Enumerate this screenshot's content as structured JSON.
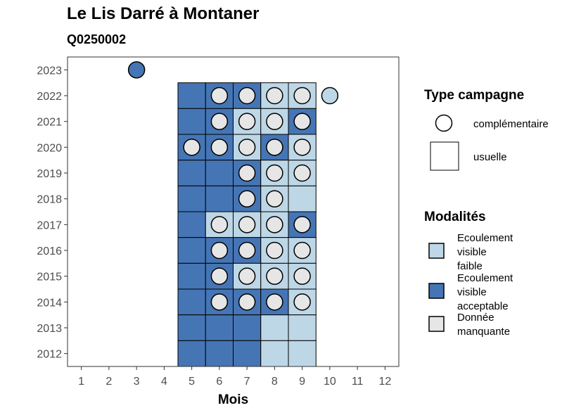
{
  "title": "Le Lis Darré à Montaner",
  "subtitle": "Q0250002",
  "colors": {
    "Ecoulement visible faible": "#bdd7e7",
    "Ecoulement visible acceptable": "#4575b4",
    "Donnée manquante": "#e6e6e6"
  },
  "legend": {
    "type_title": "Type campagne",
    "types": [
      "complémentaire",
      "usuelle"
    ],
    "modalites_title": "Modalités",
    "modalites": [
      {
        "key": "Ecoulement visible faible",
        "lines": [
          "Ecoulement",
          "visible",
          "faible"
        ]
      },
      {
        "key": "Ecoulement visible acceptable",
        "lines": [
          "Ecoulement",
          "visible",
          "acceptable"
        ]
      },
      {
        "key": "Donnée manquante",
        "lines": [
          "Donnée",
          "manquante"
        ]
      }
    ]
  },
  "chart_data": {
    "type": "heatmap",
    "xlabel": "Mois",
    "ylabel": "",
    "x_ticks": [
      1,
      2,
      3,
      4,
      5,
      6,
      7,
      8,
      9,
      10,
      11,
      12
    ],
    "y_ticks": [
      2012,
      2013,
      2014,
      2015,
      2016,
      2017,
      2018,
      2019,
      2020,
      2021,
      2022,
      2023
    ],
    "xlim": [
      0.5,
      12.5
    ],
    "ylim": [
      2011.5,
      2023.5
    ],
    "usuelle": [
      {
        "year": 2022,
        "month": 5,
        "modalite": "Ecoulement visible acceptable"
      },
      {
        "year": 2022,
        "month": 6,
        "modalite": "Ecoulement visible acceptable"
      },
      {
        "year": 2022,
        "month": 7,
        "modalite": "Ecoulement visible acceptable"
      },
      {
        "year": 2022,
        "month": 8,
        "modalite": "Ecoulement visible faible"
      },
      {
        "year": 2022,
        "month": 9,
        "modalite": "Ecoulement visible faible"
      },
      {
        "year": 2021,
        "month": 5,
        "modalite": "Ecoulement visible acceptable"
      },
      {
        "year": 2021,
        "month": 6,
        "modalite": "Ecoulement visible acceptable"
      },
      {
        "year": 2021,
        "month": 7,
        "modalite": "Ecoulement visible faible"
      },
      {
        "year": 2021,
        "month": 8,
        "modalite": "Ecoulement visible faible"
      },
      {
        "year": 2021,
        "month": 9,
        "modalite": "Ecoulement visible acceptable"
      },
      {
        "year": 2020,
        "month": 5,
        "modalite": "Ecoulement visible acceptable"
      },
      {
        "year": 2020,
        "month": 6,
        "modalite": "Ecoulement visible acceptable"
      },
      {
        "year": 2020,
        "month": 7,
        "modalite": "Ecoulement visible faible"
      },
      {
        "year": 2020,
        "month": 8,
        "modalite": "Ecoulement visible acceptable"
      },
      {
        "year": 2020,
        "month": 9,
        "modalite": "Ecoulement visible faible"
      },
      {
        "year": 2019,
        "month": 5,
        "modalite": "Ecoulement visible acceptable"
      },
      {
        "year": 2019,
        "month": 6,
        "modalite": "Ecoulement visible acceptable"
      },
      {
        "year": 2019,
        "month": 7,
        "modalite": "Ecoulement visible acceptable"
      },
      {
        "year": 2019,
        "month": 8,
        "modalite": "Ecoulement visible faible"
      },
      {
        "year": 2019,
        "month": 9,
        "modalite": "Ecoulement visible faible"
      },
      {
        "year": 2018,
        "month": 5,
        "modalite": "Ecoulement visible acceptable"
      },
      {
        "year": 2018,
        "month": 6,
        "modalite": "Ecoulement visible acceptable"
      },
      {
        "year": 2018,
        "month": 7,
        "modalite": "Ecoulement visible acceptable"
      },
      {
        "year": 2018,
        "month": 8,
        "modalite": "Ecoulement visible faible"
      },
      {
        "year": 2018,
        "month": 9,
        "modalite": "Ecoulement visible faible"
      },
      {
        "year": 2017,
        "month": 5,
        "modalite": "Ecoulement visible acceptable"
      },
      {
        "year": 2017,
        "month": 6,
        "modalite": "Ecoulement visible faible"
      },
      {
        "year": 2017,
        "month": 7,
        "modalite": "Ecoulement visible faible"
      },
      {
        "year": 2017,
        "month": 8,
        "modalite": "Ecoulement visible faible"
      },
      {
        "year": 2017,
        "month": 9,
        "modalite": "Ecoulement visible acceptable"
      },
      {
        "year": 2016,
        "month": 5,
        "modalite": "Ecoulement visible acceptable"
      },
      {
        "year": 2016,
        "month": 6,
        "modalite": "Ecoulement visible acceptable"
      },
      {
        "year": 2016,
        "month": 7,
        "modalite": "Ecoulement visible acceptable"
      },
      {
        "year": 2016,
        "month": 8,
        "modalite": "Ecoulement visible faible"
      },
      {
        "year": 2016,
        "month": 9,
        "modalite": "Ecoulement visible faible"
      },
      {
        "year": 2015,
        "month": 5,
        "modalite": "Ecoulement visible acceptable"
      },
      {
        "year": 2015,
        "month": 6,
        "modalite": "Ecoulement visible acceptable"
      },
      {
        "year": 2015,
        "month": 7,
        "modalite": "Ecoulement visible faible"
      },
      {
        "year": 2015,
        "month": 8,
        "modalite": "Ecoulement visible faible"
      },
      {
        "year": 2015,
        "month": 9,
        "modalite": "Ecoulement visible faible"
      },
      {
        "year": 2014,
        "month": 5,
        "modalite": "Ecoulement visible acceptable"
      },
      {
        "year": 2014,
        "month": 6,
        "modalite": "Ecoulement visible acceptable"
      },
      {
        "year": 2014,
        "month": 7,
        "modalite": "Ecoulement visible acceptable"
      },
      {
        "year": 2014,
        "month": 8,
        "modalite": "Ecoulement visible acceptable"
      },
      {
        "year": 2014,
        "month": 9,
        "modalite": "Ecoulement visible faible"
      },
      {
        "year": 2013,
        "month": 5,
        "modalite": "Ecoulement visible acceptable"
      },
      {
        "year": 2013,
        "month": 6,
        "modalite": "Ecoulement visible acceptable"
      },
      {
        "year": 2013,
        "month": 7,
        "modalite": "Ecoulement visible acceptable"
      },
      {
        "year": 2013,
        "month": 8,
        "modalite": "Ecoulement visible faible"
      },
      {
        "year": 2013,
        "month": 9,
        "modalite": "Ecoulement visible faible"
      },
      {
        "year": 2012,
        "month": 5,
        "modalite": "Ecoulement visible acceptable"
      },
      {
        "year": 2012,
        "month": 6,
        "modalite": "Ecoulement visible acceptable"
      },
      {
        "year": 2012,
        "month": 7,
        "modalite": "Ecoulement visible acceptable"
      },
      {
        "year": 2012,
        "month": 8,
        "modalite": "Ecoulement visible faible"
      },
      {
        "year": 2012,
        "month": 9,
        "modalite": "Ecoulement visible faible"
      }
    ],
    "complementaire": [
      {
        "year": 2023,
        "month": 3,
        "modalite": "Ecoulement visible acceptable"
      },
      {
        "year": 2022,
        "month": 6,
        "modalite": "Donnée manquante"
      },
      {
        "year": 2022,
        "month": 7,
        "modalite": "Donnée manquante"
      },
      {
        "year": 2022,
        "month": 8,
        "modalite": "Donnée manquante"
      },
      {
        "year": 2022,
        "month": 9,
        "modalite": "Donnée manquante"
      },
      {
        "year": 2022,
        "month": 10,
        "modalite": "Ecoulement visible faible"
      },
      {
        "year": 2021,
        "month": 6,
        "modalite": "Donnée manquante"
      },
      {
        "year": 2021,
        "month": 7,
        "modalite": "Donnée manquante"
      },
      {
        "year": 2021,
        "month": 8,
        "modalite": "Donnée manquante"
      },
      {
        "year": 2021,
        "month": 9,
        "modalite": "Donnée manquante"
      },
      {
        "year": 2020,
        "month": 5,
        "modalite": "Donnée manquante"
      },
      {
        "year": 2020,
        "month": 6,
        "modalite": "Donnée manquante"
      },
      {
        "year": 2020,
        "month": 7,
        "modalite": "Donnée manquante"
      },
      {
        "year": 2020,
        "month": 8,
        "modalite": "Donnée manquante"
      },
      {
        "year": 2020,
        "month": 9,
        "modalite": "Donnée manquante"
      },
      {
        "year": 2019,
        "month": 7,
        "modalite": "Donnée manquante"
      },
      {
        "year": 2019,
        "month": 8,
        "modalite": "Donnée manquante"
      },
      {
        "year": 2019,
        "month": 9,
        "modalite": "Donnée manquante"
      },
      {
        "year": 2018,
        "month": 7,
        "modalite": "Donnée manquante"
      },
      {
        "year": 2018,
        "month": 8,
        "modalite": "Donnée manquante"
      },
      {
        "year": 2017,
        "month": 6,
        "modalite": "Donnée manquante"
      },
      {
        "year": 2017,
        "month": 7,
        "modalite": "Donnée manquante"
      },
      {
        "year": 2017,
        "month": 8,
        "modalite": "Donnée manquante"
      },
      {
        "year": 2017,
        "month": 9,
        "modalite": "Donnée manquante"
      },
      {
        "year": 2016,
        "month": 6,
        "modalite": "Donnée manquante"
      },
      {
        "year": 2016,
        "month": 7,
        "modalite": "Donnée manquante"
      },
      {
        "year": 2016,
        "month": 8,
        "modalite": "Donnée manquante"
      },
      {
        "year": 2016,
        "month": 9,
        "modalite": "Donnée manquante"
      },
      {
        "year": 2015,
        "month": 6,
        "modalite": "Donnée manquante"
      },
      {
        "year": 2015,
        "month": 7,
        "modalite": "Donnée manquante"
      },
      {
        "year": 2015,
        "month": 8,
        "modalite": "Donnée manquante"
      },
      {
        "year": 2015,
        "month": 9,
        "modalite": "Donnée manquante"
      },
      {
        "year": 2014,
        "month": 6,
        "modalite": "Donnée manquante"
      },
      {
        "year": 2014,
        "month": 7,
        "modalite": "Donnée manquante"
      },
      {
        "year": 2014,
        "month": 8,
        "modalite": "Donnée manquante"
      },
      {
        "year": 2014,
        "month": 9,
        "modalite": "Donnée manquante"
      }
    ]
  }
}
